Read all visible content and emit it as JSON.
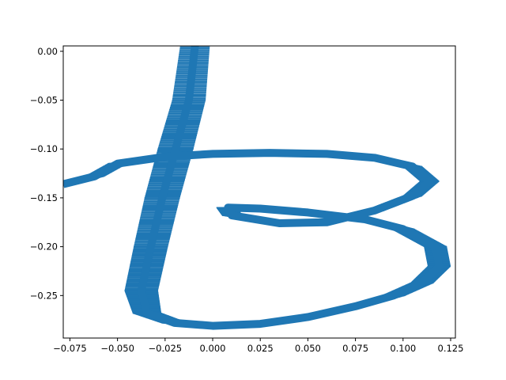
{
  "chart_data": {
    "type": "area",
    "title": "",
    "xlabel": "",
    "ylabel": "",
    "xlim": [
      -0.0785,
      0.1275
    ],
    "ylim": [
      -0.2935,
      0.0055
    ],
    "xticks": [
      -0.075,
      -0.05,
      -0.025,
      0.0,
      0.025,
      0.05,
      0.075,
      0.1,
      0.125
    ],
    "xtick_labels": [
      "−0.075",
      "−0.050",
      "−0.025",
      "0.000",
      "0.025",
      "0.050",
      "0.075",
      "0.100",
      "0.125"
    ],
    "yticks": [
      0.0,
      -0.05,
      -0.1,
      -0.15,
      -0.2,
      -0.25
    ],
    "ytick_labels": [
      "0.00",
      "−0.05",
      "−0.10",
      "−0.15",
      "−0.20",
      "−0.25"
    ],
    "grid": false,
    "fill_color": "#1f77b4",
    "series": [
      {
        "values": [
          {
            "x": -0.0093,
            "y": 0.0055,
            "half_width": 0.0078
          },
          {
            "x": -0.0125,
            "y": -0.05,
            "half_width": 0.0088
          },
          {
            "x": -0.0195,
            "y": -0.1,
            "half_width": 0.0094
          },
          {
            "x": -0.0265,
            "y": -0.15,
            "half_width": 0.0093
          },
          {
            "x": -0.0325,
            "y": -0.2,
            "half_width": 0.009
          },
          {
            "x": -0.0375,
            "y": -0.245,
            "half_width": 0.0088
          },
          {
            "x": -0.0345,
            "y": -0.268,
            "half_width": 0.0075
          },
          {
            "x": -0.02,
            "y": -0.278,
            "half_width": 0.0068
          },
          {
            "x": 0.0,
            "y": -0.281,
            "half_width": 0.0064
          },
          {
            "x": 0.025,
            "y": -0.279,
            "half_width": 0.0062
          },
          {
            "x": 0.05,
            "y": -0.272,
            "half_width": 0.006
          },
          {
            "x": 0.075,
            "y": -0.261,
            "half_width": 0.006
          },
          {
            "x": 0.095,
            "y": -0.25,
            "half_width": 0.006
          },
          {
            "x": 0.11,
            "y": -0.237,
            "half_width": 0.006
          },
          {
            "x": 0.119,
            "y": -0.22,
            "half_width": 0.006
          },
          {
            "x": 0.117,
            "y": -0.2,
            "half_width": 0.006
          },
          {
            "x": 0.1,
            "y": -0.182,
            "half_width": 0.006
          },
          {
            "x": 0.08,
            "y": -0.172,
            "half_width": 0.006
          },
          {
            "x": 0.05,
            "y": -0.165,
            "half_width": 0.006
          },
          {
            "x": 0.025,
            "y": -0.161,
            "half_width": 0.006
          },
          {
            "x": 0.008,
            "y": -0.16,
            "half_width": 0.006
          },
          {
            "x": 0.01,
            "y": -0.168,
            "half_width": 0.005
          },
          {
            "x": 0.035,
            "y": -0.176,
            "half_width": 0.005
          },
          {
            "x": 0.06,
            "y": -0.175,
            "half_width": 0.005
          },
          {
            "x": 0.085,
            "y": -0.163,
            "half_width": 0.005
          },
          {
            "x": 0.105,
            "y": -0.148,
            "half_width": 0.005
          },
          {
            "x": 0.114,
            "y": -0.133,
            "half_width": 0.005
          },
          {
            "x": 0.105,
            "y": -0.118,
            "half_width": 0.005
          },
          {
            "x": 0.085,
            "y": -0.109,
            "half_width": 0.005
          },
          {
            "x": 0.06,
            "y": -0.105,
            "half_width": 0.005
          },
          {
            "x": 0.03,
            "y": -0.104,
            "half_width": 0.005
          },
          {
            "x": 0.0,
            "y": -0.105,
            "half_width": 0.005
          },
          {
            "x": -0.025,
            "y": -0.108,
            "half_width": 0.005
          },
          {
            "x": -0.05,
            "y": -0.115,
            "half_width": 0.005
          },
          {
            "x": -0.062,
            "y": -0.128,
            "half_width": 0.005
          },
          {
            "x": -0.0785,
            "y": -0.136,
            "half_width": 0.005
          }
        ]
      }
    ]
  }
}
